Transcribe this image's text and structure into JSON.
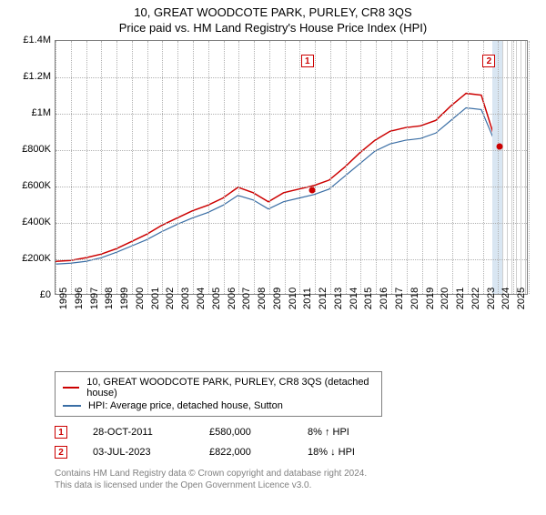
{
  "title": "10, GREAT WOODCOTE PARK, PURLEY, CR8 3QS",
  "subtitle": "Price paid vs. HM Land Registry's House Price Index (HPI)",
  "chart": {
    "type": "line",
    "background_color": "#ffffff",
    "grid_color": "#b0b0b0",
    "border_color": "#808080",
    "x": {
      "min": 1995,
      "max": 2026,
      "tick_start": 1995,
      "tick_end": 2026,
      "tick_step": 1
    },
    "y": {
      "min": 0,
      "max": 1400000,
      "tick_step": 200000,
      "format": "gbp-short"
    },
    "y_tick_labels": [
      "£0",
      "£200K",
      "£400K",
      "£600K",
      "£800K",
      "£1M",
      "£1.2M",
      "£1.4M"
    ],
    "shade_future": {
      "from_year": 2024.3,
      "hatch_color": "#cfcfcf"
    },
    "shade_recent": {
      "from_year": 2023.6,
      "to_year": 2024.3,
      "fill": "#d9e6f2"
    },
    "series": [
      {
        "name": "10, GREAT WOODCOTE PARK, PURLEY, CR8 3QS (detached house)",
        "color": "#cc0000",
        "width": 1.5,
        "points": [
          [
            1995,
            180000
          ],
          [
            1996,
            185000
          ],
          [
            1997,
            200000
          ],
          [
            1998,
            220000
          ],
          [
            1999,
            250000
          ],
          [
            2000,
            290000
          ],
          [
            2001,
            330000
          ],
          [
            2002,
            380000
          ],
          [
            2003,
            420000
          ],
          [
            2004,
            460000
          ],
          [
            2005,
            490000
          ],
          [
            2006,
            530000
          ],
          [
            2007,
            590000
          ],
          [
            2008,
            560000
          ],
          [
            2009,
            510000
          ],
          [
            2010,
            560000
          ],
          [
            2011,
            580000
          ],
          [
            2012,
            600000
          ],
          [
            2013,
            630000
          ],
          [
            2014,
            700000
          ],
          [
            2015,
            780000
          ],
          [
            2016,
            850000
          ],
          [
            2017,
            900000
          ],
          [
            2018,
            920000
          ],
          [
            2019,
            930000
          ],
          [
            2020,
            960000
          ],
          [
            2021,
            1040000
          ],
          [
            2022,
            1110000
          ],
          [
            2023,
            1100000
          ],
          [
            2024,
            830000
          ]
        ]
      },
      {
        "name": "HPI: Average price, detached house, Sutton",
        "color": "#3a6ea5",
        "width": 1.2,
        "points": [
          [
            1995,
            165000
          ],
          [
            1996,
            170000
          ],
          [
            1997,
            180000
          ],
          [
            1998,
            200000
          ],
          [
            1999,
            230000
          ],
          [
            2000,
            265000
          ],
          [
            2001,
            300000
          ],
          [
            2002,
            345000
          ],
          [
            2003,
            385000
          ],
          [
            2004,
            420000
          ],
          [
            2005,
            450000
          ],
          [
            2006,
            490000
          ],
          [
            2007,
            545000
          ],
          [
            2008,
            520000
          ],
          [
            2009,
            470000
          ],
          [
            2010,
            510000
          ],
          [
            2011,
            530000
          ],
          [
            2012,
            550000
          ],
          [
            2013,
            580000
          ],
          [
            2014,
            650000
          ],
          [
            2015,
            720000
          ],
          [
            2016,
            790000
          ],
          [
            2017,
            830000
          ],
          [
            2018,
            850000
          ],
          [
            2019,
            860000
          ],
          [
            2020,
            890000
          ],
          [
            2021,
            960000
          ],
          [
            2022,
            1030000
          ],
          [
            2023,
            1020000
          ],
          [
            2024,
            820000
          ]
        ]
      }
    ],
    "markers": [
      {
        "idx": "1",
        "year": 2011.5,
        "color": "#cc0000"
      },
      {
        "idx": "2",
        "year": 2023.4,
        "color": "#cc0000"
      }
    ],
    "sale_dots": [
      {
        "year": 2011.82,
        "price": 580000,
        "color": "#cc0000"
      },
      {
        "year": 2024.1,
        "price": 822000,
        "color": "#cc0000"
      }
    ]
  },
  "legend": {
    "items": [
      {
        "color": "#cc0000",
        "label": "10, GREAT WOODCOTE PARK, PURLEY, CR8 3QS (detached house)"
      },
      {
        "color": "#3a6ea5",
        "label": "HPI: Average price, detached house, Sutton"
      }
    ]
  },
  "transactions": [
    {
      "idx": "1",
      "color": "#cc0000",
      "date": "28-OCT-2011",
      "price": "£580,000",
      "delta": "8% ↑ HPI"
    },
    {
      "idx": "2",
      "color": "#cc0000",
      "date": "03-JUL-2023",
      "price": "£822,000",
      "delta": "18% ↓ HPI"
    }
  ],
  "footnote_line1": "Contains HM Land Registry data © Crown copyright and database right 2024.",
  "footnote_line2": "This data is licensed under the Open Government Licence v3.0."
}
